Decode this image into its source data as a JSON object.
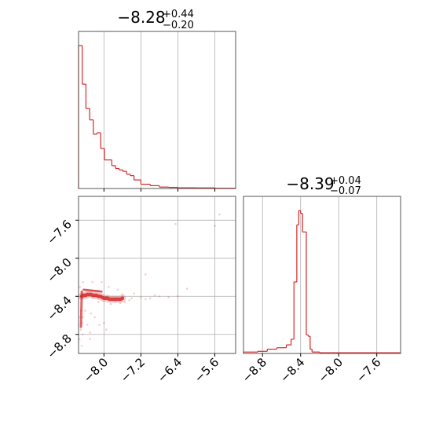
{
  "chart_data": {
    "type": "corner",
    "color": "#d62728",
    "grid": true,
    "panels": [
      {
        "id": "hist-param1",
        "type": "histogram",
        "title": {
          "median": "−8.28",
          "upper": "+0.44",
          "lower": "−0.20"
        },
        "xlim": [
          -8.55,
          -5.15
        ],
        "bins_x": [
          -8.55,
          -8.47,
          -8.39,
          -8.31,
          -8.23,
          -8.15,
          -8.07,
          -7.99,
          -7.91,
          -7.83,
          -7.75,
          -7.67,
          -7.59,
          -7.51,
          -7.43,
          -7.35,
          -7.2,
          -7.0,
          -6.8,
          -6.6,
          -6.4,
          -6.0,
          -5.6,
          -5.15
        ],
        "counts": [
          1.0,
          0.73,
          0.56,
          0.48,
          0.38,
          0.39,
          0.28,
          0.2,
          0.2,
          0.16,
          0.14,
          0.13,
          0.12,
          0.1,
          0.09,
          0.06,
          0.03,
          0.02,
          0.01,
          0.008,
          0.005,
          0.004,
          0.002
        ],
        "xticks": [
          -8.0,
          -7.2,
          -6.4,
          -5.6
        ]
      },
      {
        "id": "hist-param2",
        "type": "histogram",
        "title": {
          "median": "−8.39",
          "upper": "+0.04",
          "lower": "−0.07"
        },
        "xlim": [
          -9.0,
          -7.35
        ],
        "bins_x": [
          -9.0,
          -8.85,
          -8.75,
          -8.65,
          -8.55,
          -8.5,
          -8.47,
          -8.44,
          -8.42,
          -8.4,
          -8.38,
          -8.36,
          -8.34,
          -8.32,
          -8.3,
          -8.28,
          -8.2,
          -7.35
        ],
        "counts": [
          0.01,
          0.015,
          0.03,
          0.04,
          0.06,
          0.1,
          0.5,
          0.9,
          1.0,
          0.98,
          0.85,
          0.85,
          0.13,
          0.12,
          0.03,
          0.01,
          0.005
        ],
        "xticks": [
          -8.8,
          -8.4,
          -8.0,
          -7.6
        ],
        "xtick_labels": [
          "−8.8",
          "−8.4",
          "−8.0",
          "−7.6"
        ]
      },
      {
        "id": "scatter-2d",
        "type": "scatter",
        "xlim": [
          -8.55,
          -5.15
        ],
        "ylim": [
          -9.0,
          -7.35
        ],
        "xticks": [
          -8.0,
          -7.2,
          -6.4,
          -5.6
        ],
        "xtick_labels": [
          "−8.0",
          "−7.2",
          "−6.4",
          "−5.6"
        ],
        "yticks": [
          -8.8,
          -8.4,
          -8.0,
          -7.6
        ],
        "ytick_labels": [
          "−8.8",
          "−8.4",
          "−8.0",
          "−7.6"
        ],
        "density_core": {
          "x": [
            -8.48,
            -8.44,
            -8.4,
            -8.36,
            -8.32,
            -8.28,
            -8.24,
            -8.2,
            -8.16,
            -8.12,
            -8.08,
            -8.04,
            -8.0,
            -7.96,
            -7.92,
            -7.88,
            -7.84,
            -7.8,
            -7.76,
            -7.72,
            -7.68,
            -7.64,
            -7.6
          ],
          "y": [
            -8.4,
            -8.39,
            -8.39,
            -8.38,
            -8.38,
            -8.38,
            -8.39,
            -8.39,
            -8.39,
            -8.4,
            -8.4,
            -8.41,
            -8.42,
            -8.42,
            -8.42,
            -8.43,
            -8.43,
            -8.43,
            -8.43,
            -8.43,
            -8.43,
            -8.43,
            -8.42
          ]
        },
        "points": [
          [
            -7.4,
            -8.42
          ],
          [
            -7.2,
            -8.41
          ],
          [
            -7.0,
            -8.42
          ],
          [
            -6.8,
            -8.4
          ],
          [
            -6.6,
            -8.41
          ],
          [
            -6.4,
            -8.4
          ],
          [
            -7.6,
            -8.38
          ],
          [
            -7.1,
            -8.43
          ],
          [
            -6.2,
            -8.32
          ],
          [
            -6.9,
            -8.39
          ],
          [
            -6.45,
            -7.64
          ],
          [
            -5.5,
            -7.54
          ],
          [
            -5.6,
            -7.66
          ],
          [
            -7.1,
            -8.17
          ],
          [
            -8.52,
            -8.3
          ],
          [
            -8.5,
            -8.55
          ],
          [
            -8.52,
            -8.62
          ],
          [
            -8.48,
            -8.68
          ],
          [
            -8.5,
            -8.75
          ],
          [
            -8.46,
            -8.8
          ],
          [
            -8.53,
            -8.85
          ],
          [
            -8.48,
            -8.92
          ],
          [
            -8.41,
            -8.55
          ],
          [
            -8.45,
            -8.62
          ],
          [
            -8.36,
            -8.7
          ],
          [
            -8.3,
            -8.78
          ],
          [
            -8.28,
            -8.58
          ],
          [
            -8.2,
            -8.62
          ],
          [
            -8.1,
            -8.7
          ],
          [
            -8.0,
            -8.68
          ],
          [
            -7.95,
            -8.75
          ],
          [
            -8.3,
            -8.85
          ],
          [
            -8.12,
            -8.46
          ],
          [
            -7.85,
            -8.48
          ],
          [
            -7.75,
            -8.45
          ],
          [
            -7.65,
            -8.47
          ],
          [
            -7.55,
            -8.46
          ],
          [
            -7.45,
            -8.44
          ],
          [
            -8.05,
            -8.25
          ],
          [
            -8.25,
            -8.25
          ],
          [
            -7.9,
            -8.3
          ],
          [
            -7.7,
            -8.33
          ],
          [
            -7.35,
            -8.37
          ],
          [
            -8.45,
            -8.25
          ]
        ]
      }
    ]
  }
}
